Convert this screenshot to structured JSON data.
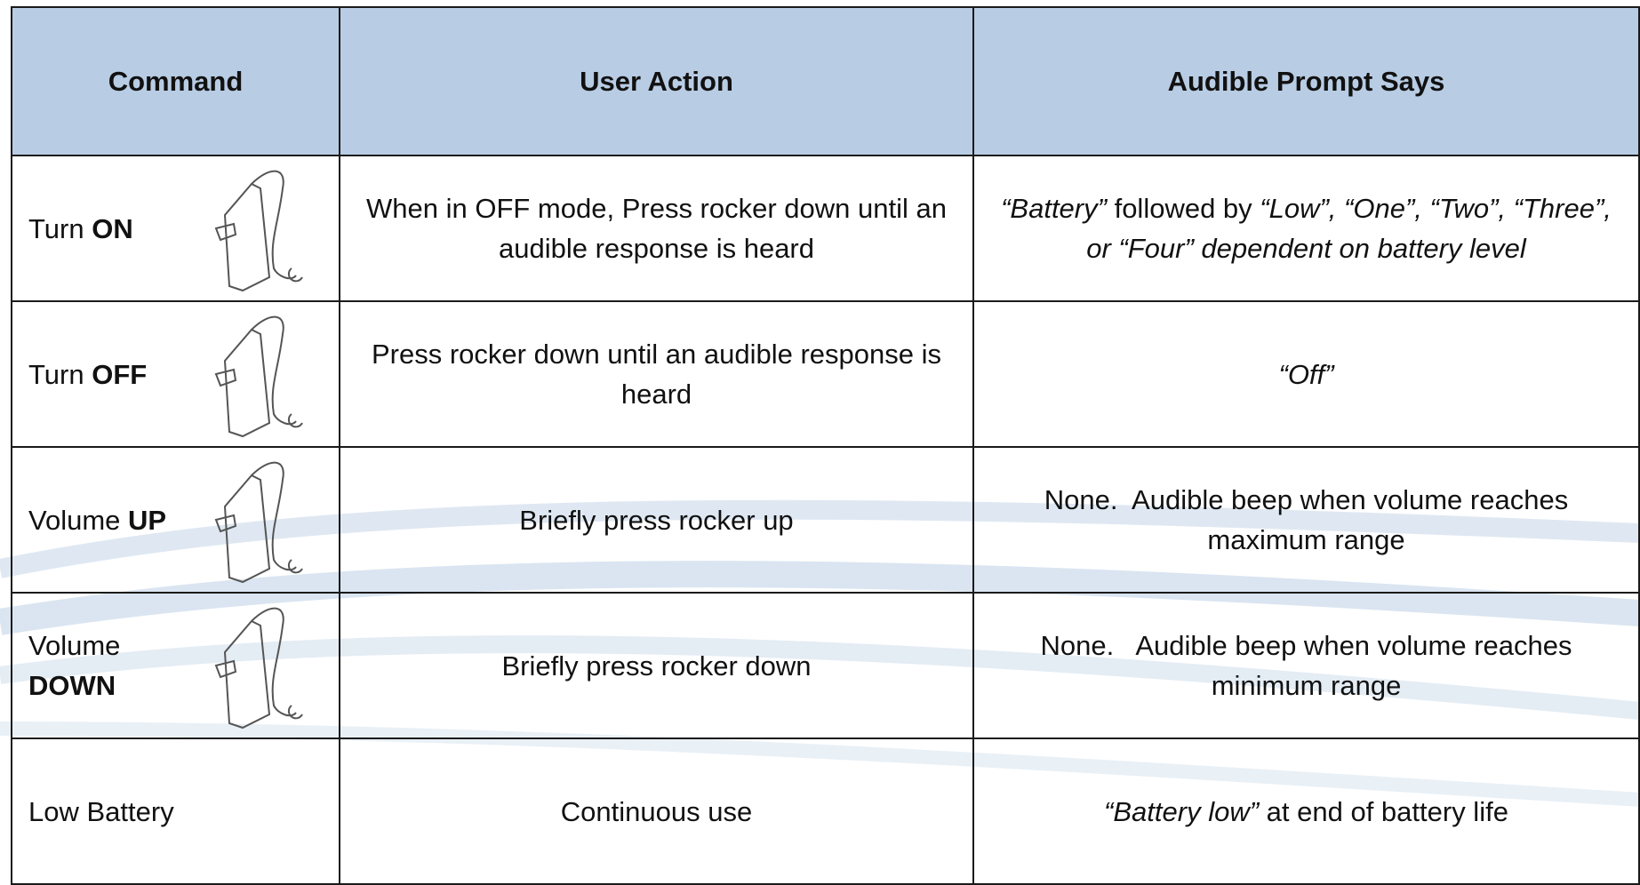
{
  "header": [
    "Command",
    "User Action",
    "Audible Prompt Says"
  ],
  "rows": [
    {
      "command": [
        {
          "text": "Turn"
        },
        {
          "text": "ON",
          "bold": true
        }
      ],
      "action": [
        {
          "text": "When in OFF mode, Press rocker down until an audible response is heard"
        }
      ],
      "prompt": [
        {
          "text": "“Battery”",
          "italic": true
        },
        {
          "text": "followed by"
        },
        {
          "text": "“Low”, “One”, “Two”, “Three”, or “Four” dependent on battery level",
          "italic": true
        }
      ]
    },
    {
      "command": [
        {
          "text": "Turn"
        },
        {
          "text": "OFF",
          "bold": true
        }
      ],
      "action": [
        {
          "text": "Press rocker down until an audible response is heard"
        }
      ],
      "prompt": [
        {
          "text": "“Off”",
          "italic": true
        }
      ]
    },
    {
      "command": [
        {
          "text": "Volume"
        },
        {
          "text": "UP",
          "bold": true
        }
      ],
      "action": [
        {
          "text": "Briefly press rocker up"
        }
      ],
      "prompt": [
        {
          "text": "None.  Audible beep when volume reaches maximum range"
        }
      ]
    },
    {
      "command": [
        {
          "text": "Volume"
        },
        {
          "text": "DOWN",
          "bold": true
        }
      ],
      "action": [
        {
          "text": "Briefly press rocker down"
        }
      ],
      "prompt": [
        {
          "text": "None.   Audible beep when volume reaches minimum range"
        }
      ]
    },
    {
      "command": [
        {
          "text": "Low Battery"
        }
      ],
      "action": [
        {
          "text": "Continuous use"
        }
      ],
      "prompt": [
        {
          "text": "“Battery low”",
          "italic": true
        },
        {
          "text": "at end of battery life"
        }
      ]
    }
  ]
}
